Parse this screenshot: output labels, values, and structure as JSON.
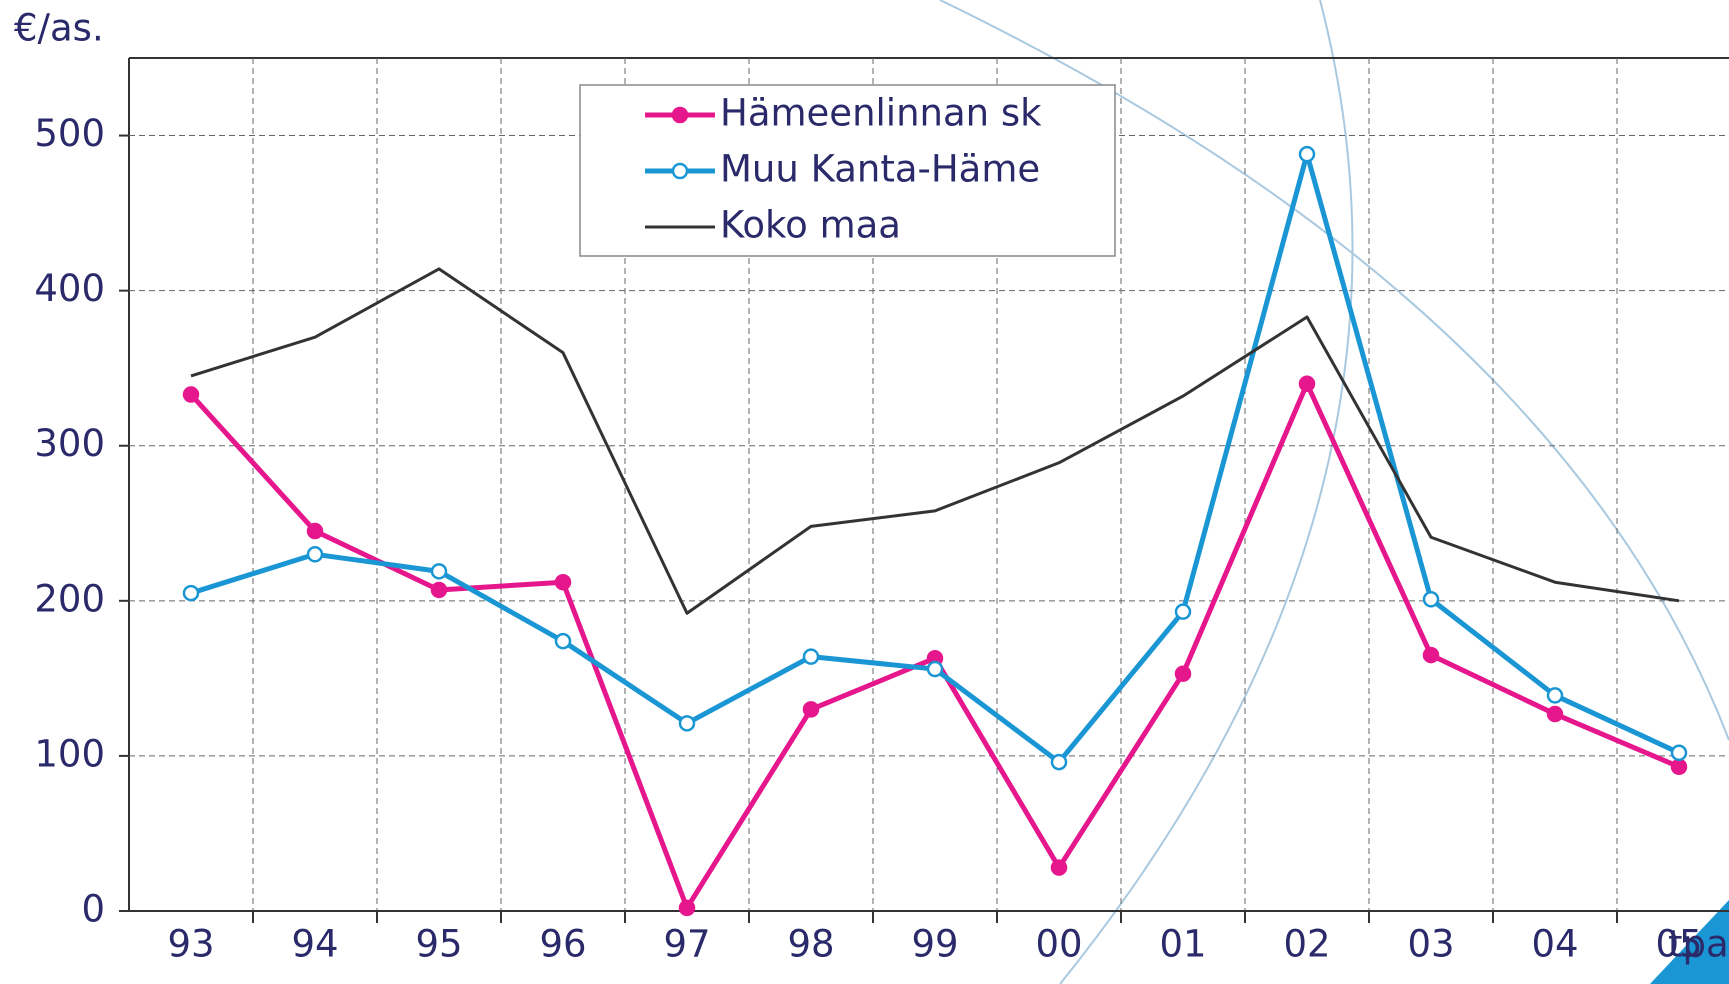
{
  "chart_data": {
    "type": "line",
    "y_label": "€/as.",
    "x_label": "tpa",
    "categories": [
      "93",
      "94",
      "95",
      "96",
      "97",
      "98",
      "99",
      "00",
      "01",
      "02",
      "03",
      "04",
      "05"
    ],
    "series": [
      {
        "name": "Hämeenlinnan sk",
        "color": "#e6168c",
        "marker": "filled",
        "values": [
          333,
          245,
          207,
          212,
          2,
          130,
          163,
          28,
          153,
          340,
          165,
          127,
          93
        ]
      },
      {
        "name": "Muu Kanta-Häme",
        "color": "#1a96d4",
        "marker": "open",
        "values": [
          205,
          230,
          219,
          174,
          121,
          164,
          156,
          96,
          193,
          488,
          201,
          139,
          102
        ]
      },
      {
        "name": "Koko maa",
        "color": "#333333",
        "marker": "none",
        "values": [
          345,
          370,
          414,
          360,
          192,
          248,
          258,
          289,
          332,
          383,
          241,
          212,
          200
        ]
      }
    ],
    "ylim": [
      0,
      550
    ],
    "yticks": [
      0,
      100,
      200,
      300,
      400,
      500
    ],
    "grid": true
  }
}
